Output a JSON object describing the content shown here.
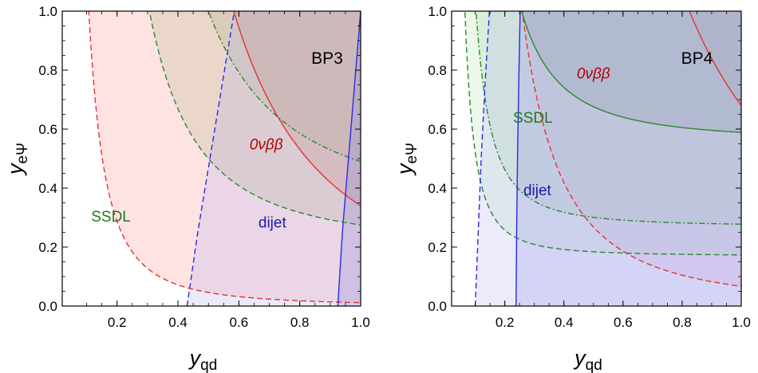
{
  "chart_data": [
    {
      "type": "area",
      "panel": "BP3",
      "xlabel": "y",
      "xlabel_sub": "qd",
      "ylabel": "y",
      "ylabel_sub": "eΨ",
      "xlim": [
        0.02,
        1.0
      ],
      "ylim": [
        0.0,
        1.0
      ],
      "xticks": [
        "0.2",
        "0.4",
        "0.6",
        "0.8",
        "1.0"
      ],
      "yticks": [
        "0.0",
        "0.2",
        "0.4",
        "0.6",
        "0.8",
        "1.0"
      ],
      "annotations": [
        {
          "text": "BP3",
          "x": 0.89,
          "y": 0.84,
          "color": "#000000"
        },
        {
          "text": "0νββ",
          "x": 0.69,
          "y": 0.55,
          "color": "#b20000"
        },
        {
          "text": "SSDL",
          "x": 0.18,
          "y": 0.305,
          "color": "#1f7a1f"
        },
        {
          "text": "dijet",
          "x": 0.71,
          "y": 0.285,
          "color": "#1a1aaa"
        }
      ],
      "curves": [
        {
          "name": "0νββ",
          "style": "dashed",
          "color": "#e63232",
          "fill": "#ff9a9a",
          "k": 0.0115
        },
        {
          "name": "0νββ",
          "style": "solid",
          "color": "#e63232",
          "fill": "#e06a6a",
          "k": 0.34
        },
        {
          "name": "SSDL",
          "style": "dashed",
          "color": "#2a8a2a",
          "fill": "#b8b38a",
          "c": 0.075,
          "a": 0.2
        },
        {
          "name": "SSDL",
          "style": "dashdot",
          "color": "#2a8a2a",
          "fill": "#b8b38a",
          "c": 0.17,
          "a": 0.32
        },
        {
          "name": "SSDL",
          "style": "solid",
          "color": "#2a8a2a",
          "fill": "#6f8a6a",
          "c": 0.55,
          "a": 0.695
        },
        {
          "name": "dijet",
          "style": "dashed",
          "color": "#2b2be0",
          "fill": "#b2b2f0",
          "points": [
            [
              0.43,
              0.0
            ],
            [
              0.465,
              0.25
            ],
            [
              0.505,
              0.5
            ],
            [
              0.545,
              0.75
            ],
            [
              0.585,
              1.0
            ]
          ]
        },
        {
          "name": "dijet",
          "style": "solid",
          "color": "#2b2be0",
          "fill": "#8a8ae0",
          "points": [
            [
              0.925,
              0.0
            ],
            [
              0.94,
              0.25
            ],
            [
              0.96,
              0.5
            ],
            [
              0.98,
              0.75
            ],
            [
              1.0,
              1.0
            ]
          ]
        }
      ]
    },
    {
      "type": "area",
      "panel": "BP4",
      "xlabel": "y",
      "xlabel_sub": "qd",
      "ylabel": "y",
      "ylabel_sub": "eΨ",
      "xlim": [
        0.02,
        1.0
      ],
      "ylim": [
        0.0,
        1.0
      ],
      "xticks": [
        "0.2",
        "0.4",
        "0.6",
        "0.8",
        "1.0"
      ],
      "yticks": [
        "0.0",
        "0.2",
        "0.4",
        "0.6",
        "0.8",
        "1.0"
      ],
      "annotations": [
        {
          "text": "BP4",
          "x": 0.85,
          "y": 0.84,
          "color": "#000000"
        },
        {
          "text": "0νββ",
          "x": 0.5,
          "y": 0.79,
          "color": "#b20000"
        },
        {
          "text": "SSDL",
          "x": 0.295,
          "y": 0.64,
          "color": "#1f7a1f"
        },
        {
          "text": "dijet",
          "x": 0.31,
          "y": 0.395,
          "color": "#1a1aaa"
        }
      ],
      "curves": [
        {
          "name": "0νββ",
          "style": "dashed",
          "color": "#e63232",
          "fill": "#f0a8c8",
          "k": 0.067
        },
        {
          "name": "0νββ",
          "style": "solid",
          "color": "#e63232",
          "fill": "#d88080",
          "k": 0.68
        },
        {
          "name": "SSDL",
          "style": "dashed",
          "color": "#2a8a2a",
          "fill": "#bfe6bf",
          "c": 0.0035,
          "a": 0.17
        },
        {
          "name": "SSDL",
          "style": "dashdot",
          "color": "#2a8a2a",
          "fill": "#a8d6a8",
          "c": 0.0077,
          "a": 0.27
        },
        {
          "name": "SSDL",
          "style": "solid",
          "color": "#2a8a2a",
          "fill": "#7a9a7a",
          "c": 0.029,
          "a": 0.56
        },
        {
          "name": "dijet",
          "style": "dashed",
          "color": "#2b2be0",
          "fill": "#b8b8f0",
          "points": [
            [
              0.1,
              0.0
            ],
            [
              0.11,
              0.25
            ],
            [
              0.12,
              0.5
            ],
            [
              0.133,
              0.75
            ],
            [
              0.148,
              1.0
            ]
          ]
        },
        {
          "name": "dijet",
          "style": "solid",
          "color": "#2b2be0",
          "fill": "#9a9ae8",
          "points": [
            [
              0.238,
              0.0
            ],
            [
              0.24,
              0.25
            ],
            [
              0.243,
              0.5
            ],
            [
              0.247,
              0.75
            ],
            [
              0.252,
              1.0
            ]
          ]
        }
      ]
    }
  ]
}
